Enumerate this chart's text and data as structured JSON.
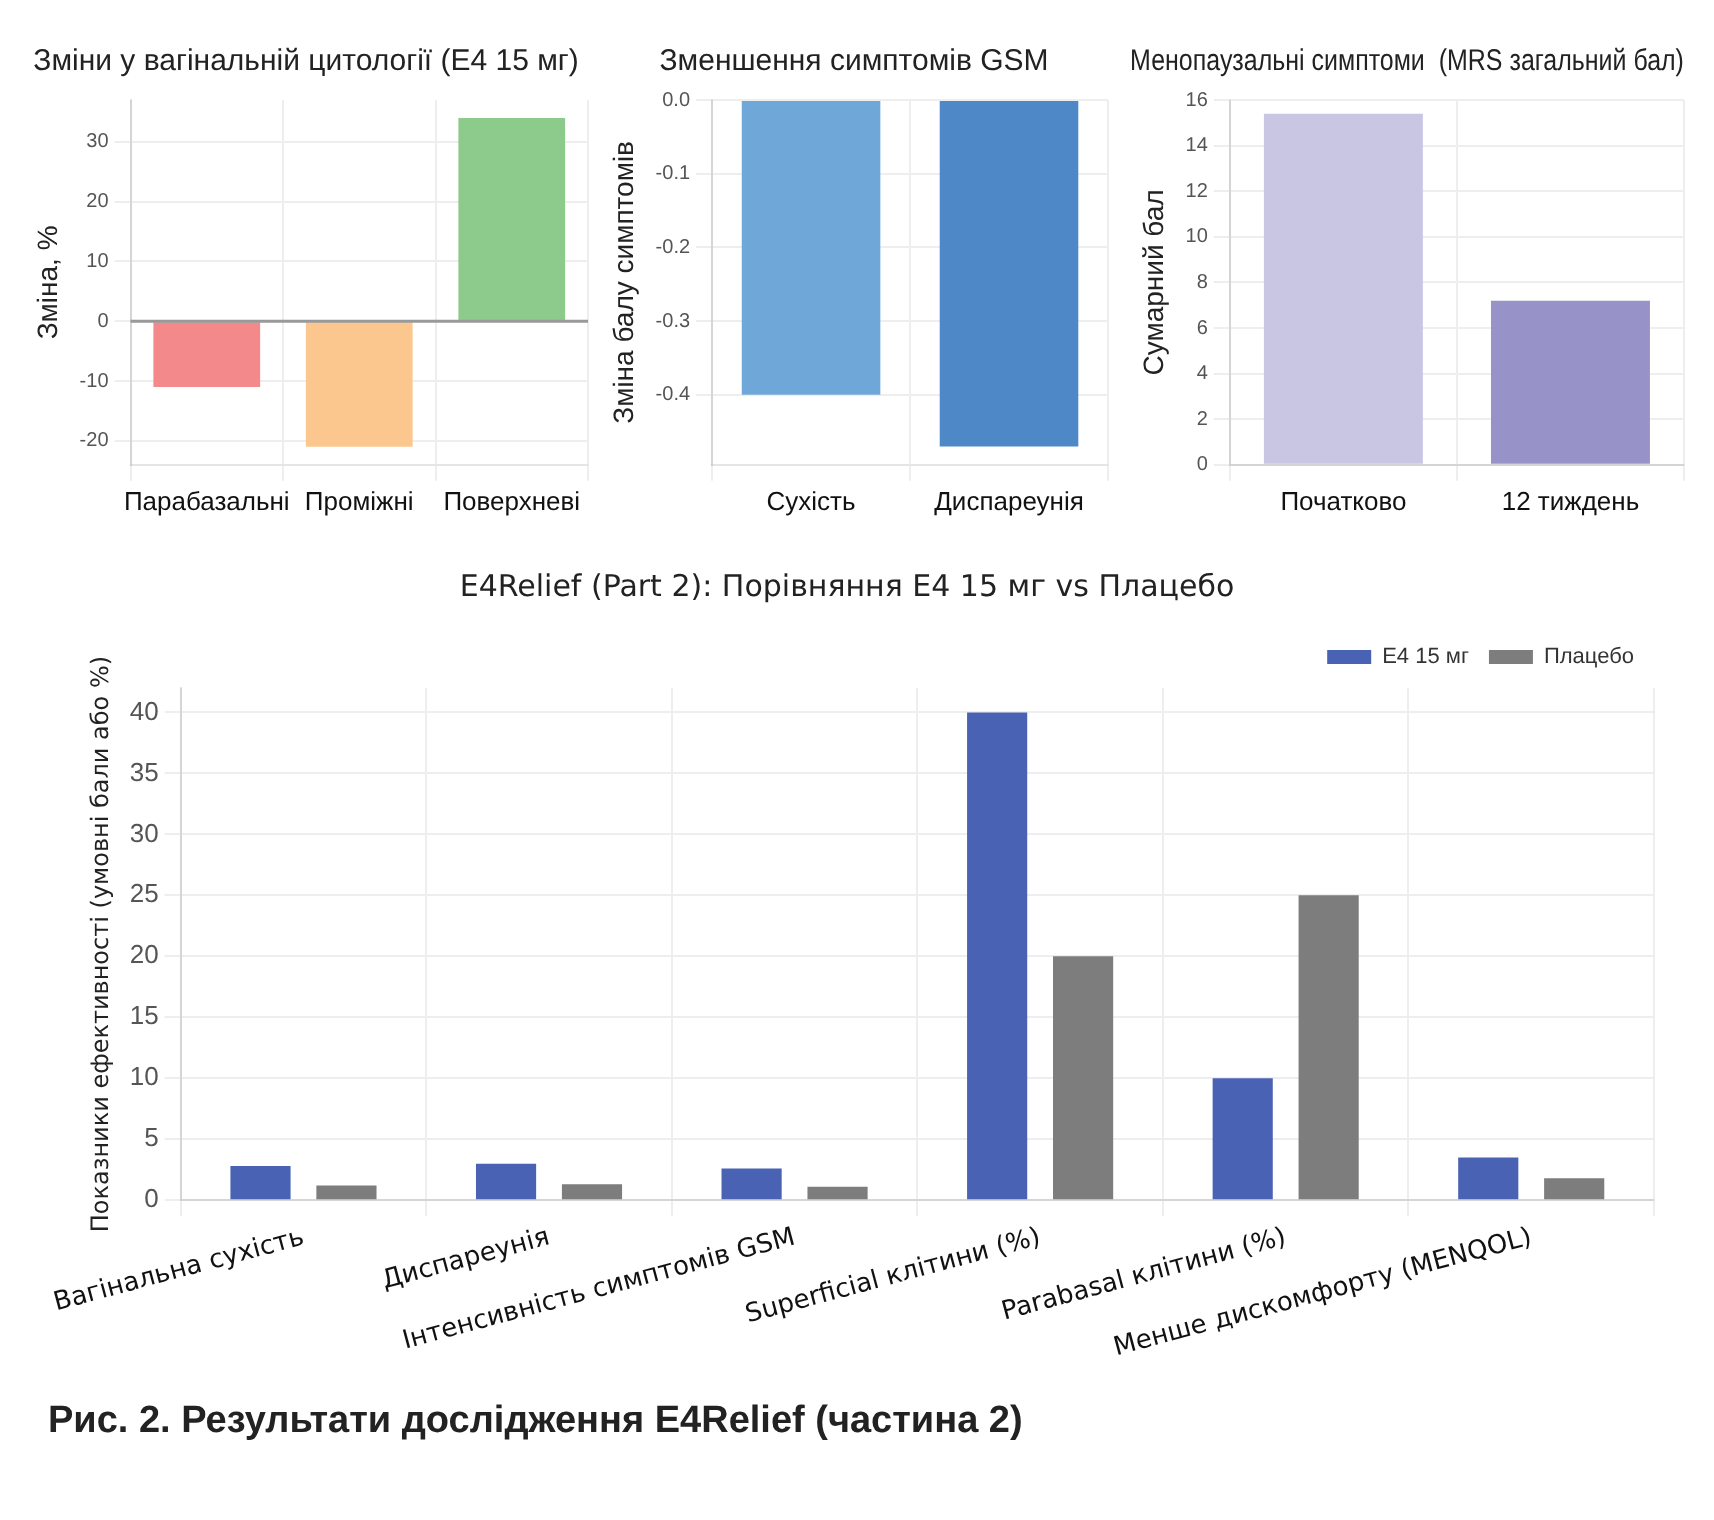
{
  "chart_data": [
    {
      "type": "bar",
      "title": "Зміни у вагінальній цитології (E4 15 мг)",
      "ylabel": "Зміна, %",
      "categories": [
        "Парабазальні",
        "Проміжні",
        "Поверхневі"
      ],
      "values": [
        -11,
        -21,
        34
      ],
      "colors": [
        "#f4898c",
        "#fbc78f",
        "#8dcb8d"
      ],
      "ylim": [
        -24,
        37
      ],
      "yticks": [
        -20,
        -10,
        0,
        10,
        20,
        30
      ],
      "grid": true
    },
    {
      "type": "bar",
      "title": "Зменшення симптомів GSM",
      "ylabel": "Зміна балу симптомів",
      "categories": [
        "Сухість",
        "Диспареунія"
      ],
      "values": [
        -0.4,
        -0.47
      ],
      "colors": [
        "#6fa7d8",
        "#4f88c6"
      ],
      "ylim": [
        -0.495,
        0
      ],
      "yticks": [
        {
          "value": 0,
          "label": "0.0"
        },
        -0.1,
        -0.2,
        -0.3,
        -0.4
      ],
      "grid": true
    },
    {
      "type": "bar",
      "title": "Менопаузальні симптоми  (MRS загальний бал)",
      "ylabel": "Сумарний бал",
      "categories": [
        "Початково",
        "12 тиждень"
      ],
      "values": [
        15.4,
        7.2
      ],
      "colors": [
        "#c9c6e4",
        "#9793c8"
      ],
      "ylim": [
        0,
        16
      ],
      "yticks": [
        0,
        2,
        4,
        6,
        8,
        10,
        12,
        14,
        16
      ],
      "grid": true
    },
    {
      "type": "bar",
      "title": "E4Relief (Part 2): Порівняння E4 15 мг vs Плацебо",
      "ylabel": "Показники ефективності (умовні бали або %)",
      "categories": [
        "Вагінальна сухість",
        "Диспареунія",
        "Інтенсивність симптомів GSM",
        "Superficial клітини (%)",
        "Parabasal клітини (%)",
        "Менше дискомфорту (MENQOL)"
      ],
      "series": [
        {
          "name": "E4 15 мг",
          "color": "#4a62b3",
          "values": [
            2.8,
            3.0,
            2.6,
            40,
            10,
            3.5
          ]
        },
        {
          "name": "Плацебо",
          "color": "#7d7d7d",
          "values": [
            1.2,
            1.3,
            1.1,
            20,
            25,
            1.8
          ]
        }
      ],
      "ylim": [
        0,
        42
      ],
      "yticks": [
        0,
        5,
        10,
        15,
        20,
        25,
        30,
        35,
        40
      ],
      "grid": true,
      "legend": "top right",
      "annotations": [
        "Рис. 2. Результати дослідження E4Relief (частина 2)"
      ]
    }
  ]
}
